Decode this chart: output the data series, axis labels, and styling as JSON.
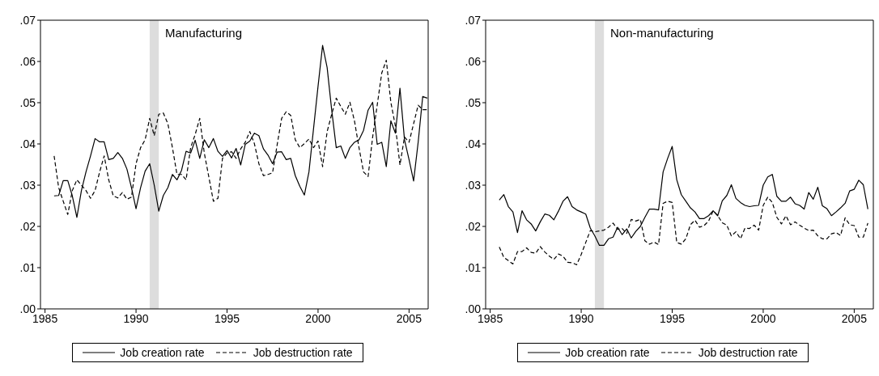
{
  "chart_data": [
    {
      "type": "line",
      "annotations": [
        "Manufacturing"
      ],
      "x": [
        1985.5,
        1985.75,
        1986,
        1986.25,
        1986.5,
        1986.75,
        1987,
        1987.25,
        1987.5,
        1987.75,
        1988,
        1988.25,
        1988.5,
        1988.75,
        1989,
        1989.25,
        1989.5,
        1989.75,
        1990,
        1990.25,
        1990.5,
        1990.75,
        1991,
        1991.25,
        1991.5,
        1991.75,
        1992,
        1992.25,
        1992.5,
        1992.75,
        1993,
        1993.25,
        1993.5,
        1993.75,
        1994,
        1994.25,
        1994.5,
        1994.75,
        1995,
        1995.25,
        1995.5,
        1995.75,
        1996,
        1996.25,
        1996.5,
        1996.75,
        1997,
        1997.25,
        1997.5,
        1997.75,
        1998,
        1998.25,
        1998.5,
        1998.75,
        1999,
        1999.25,
        1999.5,
        1999.75,
        2000,
        2000.25,
        2000.5,
        2000.75,
        2001,
        2001.25,
        2001.5,
        2001.75,
        2002,
        2002.25,
        2002.5,
        2002.75,
        2003,
        2003.25,
        2003.5,
        2003.75,
        2004,
        2004.25,
        2004.5,
        2004.75,
        2005,
        2005.25,
        2005.5,
        2005.75,
        2006
      ],
      "series": [
        {
          "name": "Job creation rate",
          "color": "#000000",
          "line_style": "solid",
          "values": [
            0.0274,
            0.0275,
            0.0311,
            0.0311,
            0.0274,
            0.0222,
            0.0287,
            0.0332,
            0.0371,
            0.0413,
            0.0405,
            0.0405,
            0.0362,
            0.0365,
            0.0379,
            0.0365,
            0.0339,
            0.0294,
            0.0243,
            0.0294,
            0.0334,
            0.0352,
            0.03,
            0.0237,
            0.0275,
            0.0294,
            0.0326,
            0.0313,
            0.0336,
            0.0382,
            0.0378,
            0.0409,
            0.0365,
            0.041,
            0.0391,
            0.0413,
            0.0382,
            0.037,
            0.0384,
            0.0366,
            0.0389,
            0.0349,
            0.0399,
            0.0407,
            0.0426,
            0.042,
            0.0388,
            0.0373,
            0.0352,
            0.038,
            0.0381,
            0.0362,
            0.0365,
            0.0323,
            0.0297,
            0.0276,
            0.0332,
            0.0436,
            0.054,
            0.0639,
            0.0585,
            0.0482,
            0.0391,
            0.0395,
            0.0365,
            0.0391,
            0.0404,
            0.041,
            0.0433,
            0.0482,
            0.0501,
            0.0399,
            0.0404,
            0.0345,
            0.0456,
            0.0426,
            0.0535,
            0.041,
            0.0362,
            0.031,
            0.0404,
            0.0515,
            0.0511
          ]
        },
        {
          "name": "Job destruction rate",
          "color": "#000000",
          "line_style": "dashed",
          "values": [
            0.0371,
            0.0294,
            0.0261,
            0.0229,
            0.0287,
            0.0313,
            0.03,
            0.0287,
            0.0268,
            0.0287,
            0.0332,
            0.0371,
            0.0313,
            0.0274,
            0.0269,
            0.0282,
            0.0266,
            0.0271,
            0.0352,
            0.0391,
            0.041,
            0.0462,
            0.042,
            0.0472,
            0.0475,
            0.0449,
            0.0391,
            0.0326,
            0.0326,
            0.0313,
            0.0391,
            0.0423,
            0.0462,
            0.0378,
            0.032,
            0.0261,
            0.0268,
            0.0365,
            0.0378,
            0.0381,
            0.0365,
            0.0388,
            0.0404,
            0.043,
            0.0401,
            0.0352,
            0.0323,
            0.0326,
            0.033,
            0.0397,
            0.0462,
            0.0478,
            0.0469,
            0.041,
            0.0391,
            0.0401,
            0.0412,
            0.0391,
            0.0407,
            0.0345,
            0.043,
            0.0472,
            0.0511,
            0.0491,
            0.0472,
            0.0501,
            0.0456,
            0.0391,
            0.0332,
            0.0321,
            0.0417,
            0.0494,
            0.0572,
            0.0603,
            0.0501,
            0.0443,
            0.0349,
            0.0417,
            0.0404,
            0.0449,
            0.0494,
            0.0483,
            0.0483
          ]
        }
      ],
      "xlim": [
        1984.75,
        2006.05
      ],
      "xticks": [
        1985,
        1990,
        1995,
        2000,
        2005
      ],
      "ylim": [
        0,
        0.07
      ],
      "yticks": [
        {
          "value": 0,
          "label": ".00"
        },
        {
          "value": 0.01,
          "label": ".01"
        },
        {
          "value": 0.02,
          "label": ".02"
        },
        {
          "value": 0.03,
          "label": ".03"
        },
        {
          "value": 0.04,
          "label": ".04"
        },
        {
          "value": 0.05,
          "label": ".05"
        },
        {
          "value": 0.06,
          "label": ".06"
        },
        {
          "value": 0.07,
          "label": ".07"
        }
      ],
      "bands": [
        {
          "axis": "x",
          "from": 1990.75,
          "to": 1991.25,
          "color": "#dddddd"
        }
      ],
      "legend": "bottom"
    },
    {
      "type": "line",
      "annotations": [
        "Non-manufacturing"
      ],
      "x": [
        1985.5,
        1985.75,
        1986,
        1986.25,
        1986.5,
        1986.75,
        1987,
        1987.25,
        1987.5,
        1987.75,
        1988,
        1988.25,
        1988.5,
        1988.75,
        1989,
        1989.25,
        1989.5,
        1989.75,
        1990,
        1990.25,
        1990.5,
        1990.75,
        1991,
        1991.25,
        1991.5,
        1991.75,
        1992,
        1992.25,
        1992.5,
        1992.75,
        1993,
        1993.25,
        1993.5,
        1993.75,
        1994,
        1994.25,
        1994.5,
        1994.75,
        1995,
        1995.25,
        1995.5,
        1995.75,
        1996,
        1996.25,
        1996.5,
        1996.75,
        1997,
        1997.25,
        1997.5,
        1997.75,
        1998,
        1998.25,
        1998.5,
        1998.75,
        1999,
        1999.25,
        1999.5,
        1999.75,
        2000,
        2000.25,
        2000.5,
        2000.75,
        2001,
        2001.25,
        2001.5,
        2001.75,
        2002,
        2002.25,
        2002.5,
        2002.75,
        2003,
        2003.25,
        2003.5,
        2003.75,
        2004,
        2004.25,
        2004.5,
        2004.75,
        2005,
        2005.25,
        2005.5,
        2005.75
      ],
      "series": [
        {
          "name": "Job creation rate",
          "color": "#000000",
          "line_style": "solid",
          "values": [
            0.0264,
            0.0277,
            0.0248,
            0.0235,
            0.0185,
            0.0238,
            0.0216,
            0.0206,
            0.0189,
            0.0211,
            0.023,
            0.0227,
            0.0216,
            0.0237,
            0.0261,
            0.0272,
            0.0248,
            0.024,
            0.0235,
            0.023,
            0.0196,
            0.0177,
            0.0154,
            0.0154,
            0.017,
            0.0174,
            0.0198,
            0.018,
            0.0194,
            0.0172,
            0.0188,
            0.02,
            0.0222,
            0.0242,
            0.0242,
            0.024,
            0.0332,
            0.0365,
            0.0394,
            0.0313,
            0.0277,
            0.0261,
            0.0245,
            0.0235,
            0.0219,
            0.0219,
            0.0226,
            0.0238,
            0.0226,
            0.0262,
            0.0275,
            0.0301,
            0.0268,
            0.0258,
            0.0251,
            0.0248,
            0.025,
            0.0251,
            0.03,
            0.032,
            0.0326,
            0.0273,
            0.0261,
            0.0261,
            0.0271,
            0.0255,
            0.0251,
            0.0242,
            0.0282,
            0.0266,
            0.0295,
            0.025,
            0.0243,
            0.0226,
            0.0235,
            0.0245,
            0.0256,
            0.0286,
            0.029,
            0.0312,
            0.0301,
            0.0242
          ]
        },
        {
          "name": "Job destruction rate",
          "color": "#000000",
          "line_style": "dashed",
          "values": [
            0.015,
            0.0125,
            0.0117,
            0.0109,
            0.0139,
            0.0139,
            0.0148,
            0.0137,
            0.0135,
            0.0151,
            0.0138,
            0.0128,
            0.012,
            0.0133,
            0.0128,
            0.0113,
            0.0112,
            0.0107,
            0.0132,
            0.0161,
            0.019,
            0.0187,
            0.0189,
            0.0191,
            0.0198,
            0.0208,
            0.0193,
            0.0195,
            0.0183,
            0.0217,
            0.0213,
            0.0217,
            0.0165,
            0.0157,
            0.0162,
            0.0156,
            0.0256,
            0.0261,
            0.0258,
            0.0161,
            0.0157,
            0.017,
            0.0204,
            0.0215,
            0.0198,
            0.0202,
            0.0213,
            0.0238,
            0.0226,
            0.0209,
            0.0203,
            0.0177,
            0.0187,
            0.017,
            0.0196,
            0.0195,
            0.0203,
            0.0191,
            0.0251,
            0.0271,
            0.0258,
            0.0222,
            0.0206,
            0.0226,
            0.0204,
            0.0211,
            0.0203,
            0.0196,
            0.019,
            0.0191,
            0.0177,
            0.017,
            0.017,
            0.0182,
            0.0185,
            0.0178,
            0.0221,
            0.0204,
            0.0202,
            0.0174,
            0.0174,
            0.0208
          ]
        }
      ],
      "xlim": [
        1984.75,
        2006.05
      ],
      "xticks": [
        1985,
        1990,
        1995,
        2000,
        2005
      ],
      "ylim": [
        0,
        0.07
      ],
      "yticks": [
        {
          "value": 0,
          "label": ".00"
        },
        {
          "value": 0.01,
          "label": ".01"
        },
        {
          "value": 0.02,
          "label": ".02"
        },
        {
          "value": 0.03,
          "label": ".03"
        },
        {
          "value": 0.04,
          "label": ".04"
        },
        {
          "value": 0.05,
          "label": ".05"
        },
        {
          "value": 0.06,
          "label": ".06"
        },
        {
          "value": 0.07,
          "label": ".07"
        }
      ],
      "bands": [
        {
          "axis": "x",
          "from": 1990.75,
          "to": 1991.25,
          "color": "#dddddd"
        }
      ],
      "legend": "bottom"
    }
  ]
}
